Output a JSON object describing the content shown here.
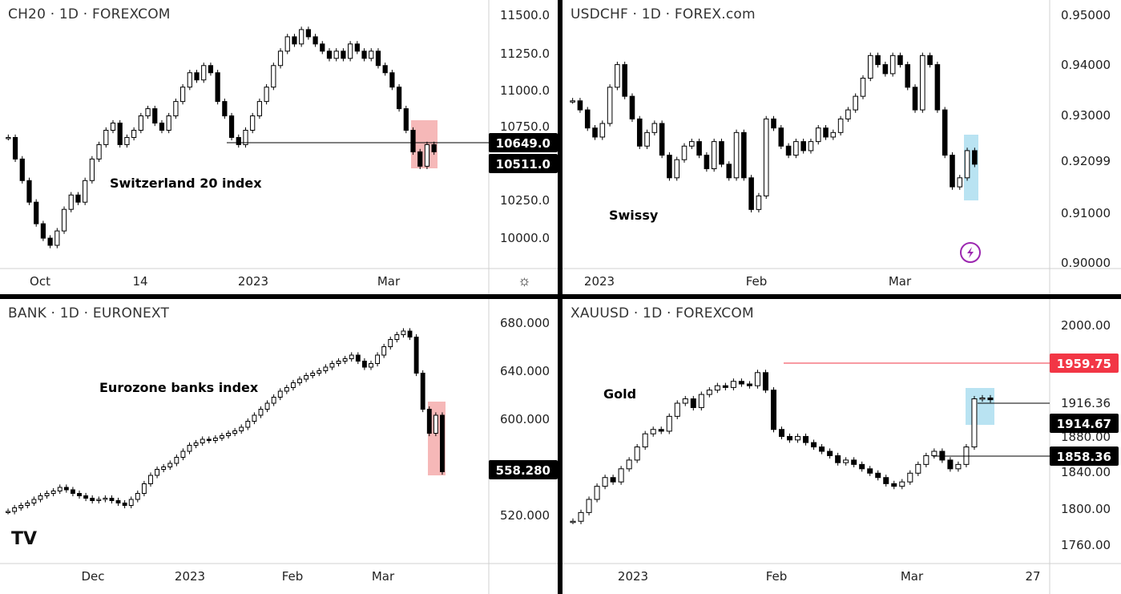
{
  "panels": [
    {
      "symbol": "CH20 · 1D · FOREXCOM",
      "note": "Switzerland 20 index",
      "y_ticks": [
        "11500.0",
        "11250.0",
        "11000.0",
        "10750.0",
        "10500.0",
        "10250.0",
        "10000.0"
      ],
      "x_ticks": [
        "Oct",
        "14",
        "2023",
        "Mar"
      ],
      "tags": [
        {
          "label": "10649.0",
          "color": "#000000"
        },
        {
          "label": "10511.0",
          "color": "#000000"
        }
      ],
      "box_color": "#f4a6a6"
    },
    {
      "symbol": "USDCHF · 1D · FOREX.com",
      "note": "Swissy",
      "y_ticks": [
        "0.95000",
        "0.94000",
        "0.93000",
        "0.92099",
        "0.91000",
        "0.90000"
      ],
      "x_ticks": [
        "2023",
        "Feb",
        "Mar"
      ],
      "tags": [],
      "box_color": "#a8dcef",
      "flash_icon": "lightning-icon"
    },
    {
      "symbol": "BANK · 1D · EURONEXT",
      "note": "Eurozone banks index",
      "y_ticks": [
        "680.000",
        "640.000",
        "600.000",
        "520.000"
      ],
      "x_ticks": [
        "Dec",
        "2023",
        "Feb",
        "Mar"
      ],
      "tags": [
        {
          "label": "558.280",
          "color": "#000000"
        }
      ],
      "box_color": "#f4a6a6",
      "logo": "TV"
    },
    {
      "symbol": "XAUUSD · 1D · FOREXCOM",
      "note": "Gold",
      "y_ticks": [
        "2000.00",
        "1916.36",
        "1880.00",
        "1840.00",
        "1800.00",
        "1760.00"
      ],
      "x_ticks": [
        "2023",
        "Feb",
        "Mar",
        "27"
      ],
      "tags": [
        {
          "label": "1959.75",
          "color": "#f23645"
        },
        {
          "label": "1914.67",
          "color": "#000000"
        },
        {
          "label": "1858.36",
          "color": "#000000"
        }
      ],
      "box_color": "#a8dcef"
    }
  ],
  "chart_data": [
    {
      "type": "candlestick",
      "title": "CH20 · 1D · FOREXCOM",
      "ylim": [
        9950,
        11650
      ],
      "x": [
        "Oct",
        "14",
        "2023",
        "Mar"
      ],
      "closes": [
        10750,
        10600,
        10450,
        10300,
        10150,
        10050,
        10000,
        10100,
        10250,
        10350,
        10300,
        10450,
        10600,
        10700,
        10800,
        10850,
        10700,
        10750,
        10800,
        10900,
        10950,
        10850,
        10800,
        10900,
        11000,
        11100,
        11200,
        11150,
        11250,
        11200,
        11000,
        10900,
        10750,
        10700,
        10800,
        10900,
        11000,
        11100,
        11250,
        11350,
        11450,
        11400,
        11500,
        11450,
        11400,
        11350,
        11300,
        11350,
        11300,
        11400,
        11350,
        11300,
        11350,
        11250,
        11200,
        11100,
        10950,
        10800,
        10650,
        10550,
        10700,
        10650
      ]
    },
    {
      "type": "candlestick",
      "title": "USDCHF · 1D · FOREX.com",
      "ylim": [
        0.8985,
        0.9525
      ],
      "x": [
        "2023",
        "Feb",
        "Mar"
      ],
      "closes": [
        0.932,
        0.93,
        0.926,
        0.924,
        0.927,
        0.935,
        0.94,
        0.933,
        0.928,
        0.922,
        0.925,
        0.927,
        0.92,
        0.915,
        0.919,
        0.922,
        0.923,
        0.92,
        0.917,
        0.923,
        0.918,
        0.915,
        0.925,
        0.915,
        0.908,
        0.911,
        0.928,
        0.926,
        0.922,
        0.92,
        0.923,
        0.921,
        0.923,
        0.926,
        0.924,
        0.925,
        0.928,
        0.93,
        0.933,
        0.937,
        0.942,
        0.94,
        0.938,
        0.942,
        0.94,
        0.935,
        0.93,
        0.942,
        0.94,
        0.93,
        0.92,
        0.913,
        0.915,
        0.921,
        0.918
      ]
    },
    {
      "type": "candlestick",
      "title": "BANK · 1D · EURONEXT",
      "ylim": [
        495,
        695
      ],
      "x": [
        "Dec",
        "2023",
        "Feb",
        "Mar"
      ],
      "closes": [
        525,
        528,
        530,
        532,
        535,
        538,
        540,
        542,
        545,
        543,
        540,
        538,
        536,
        534,
        535,
        536,
        534,
        532,
        530,
        535,
        540,
        548,
        555,
        560,
        562,
        565,
        570,
        575,
        580,
        582,
        585,
        584,
        586,
        588,
        590,
        592,
        595,
        600,
        605,
        610,
        615,
        620,
        625,
        628,
        632,
        635,
        638,
        640,
        642,
        645,
        648,
        650,
        652,
        655,
        650,
        645,
        648,
        655,
        662,
        668,
        672,
        675,
        670,
        640,
        610,
        590,
        605,
        558
      ]
    },
    {
      "type": "candlestick",
      "title": "XAUUSD · 1D · FOREXCOM",
      "ylim": [
        1745,
        2020
      ],
      "x": [
        "2023",
        "Feb",
        "Mar",
        "27"
      ],
      "closes": [
        1775,
        1785,
        1800,
        1815,
        1825,
        1820,
        1835,
        1845,
        1860,
        1875,
        1880,
        1878,
        1895,
        1910,
        1915,
        1905,
        1920,
        1925,
        1930,
        1928,
        1935,
        1932,
        1930,
        1945,
        1925,
        1880,
        1872,
        1868,
        1872,
        1865,
        1860,
        1855,
        1850,
        1842,
        1845,
        1840,
        1835,
        1830,
        1825,
        1818,
        1815,
        1820,
        1830,
        1840,
        1850,
        1855,
        1845,
        1835,
        1840,
        1860,
        1915,
        1916,
        1914
      ]
    }
  ]
}
